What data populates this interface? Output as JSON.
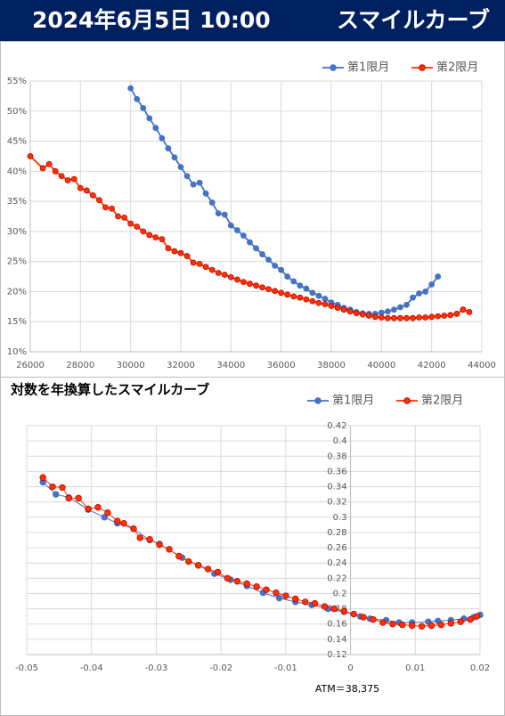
{
  "header": {
    "date": "2024年6月5日 10:00",
    "title": "スマイルカーブ"
  },
  "chart_data": [
    {
      "type": "line",
      "xlim": [
        26000,
        44000
      ],
      "xticks": [
        26000,
        28000,
        30000,
        32000,
        34000,
        36000,
        38000,
        40000,
        42000,
        44000
      ],
      "ylim": [
        10,
        55
      ],
      "yticks": [
        {
          "value": 10,
          "label": "10%"
        },
        {
          "value": 15,
          "label": "15%"
        },
        {
          "value": 20,
          "label": "20%"
        },
        {
          "value": 25,
          "label": "25%"
        },
        {
          "value": 30,
          "label": "30%"
        },
        {
          "value": 35,
          "label": "35%"
        },
        {
          "value": 40,
          "label": "40%"
        },
        {
          "value": 45,
          "label": "45%"
        },
        {
          "value": 50,
          "label": "50%"
        },
        {
          "value": 55,
          "label": "55%"
        }
      ],
      "grid": true,
      "legend": "top-right",
      "series": [
        {
          "name": "第1限月",
          "color": "#4472c4",
          "x": [
            30000,
            30250,
            30500,
            30750,
            31000,
            31250,
            31500,
            31750,
            32000,
            32250,
            32500,
            32750,
            33000,
            33250,
            33500,
            33750,
            34000,
            34250,
            34500,
            34750,
            35000,
            35250,
            35500,
            35750,
            36000,
            36250,
            36500,
            36750,
            37000,
            37250,
            37500,
            37750,
            38000,
            38250,
            38500,
            38750,
            39000,
            39250,
            39500,
            39750,
            40000,
            40250,
            40500,
            40750,
            41000,
            41250,
            41500,
            41750,
            42000,
            42250
          ],
          "values": [
            53.8,
            52,
            50.5,
            48.8,
            47.2,
            45.5,
            43.8,
            42.3,
            40.7,
            39.2,
            37.8,
            38.1,
            36.3,
            34.8,
            33,
            32.8,
            31,
            30.2,
            29.3,
            28.2,
            27.2,
            26.2,
            25.3,
            24.3,
            23.6,
            22.5,
            21.7,
            21,
            20.5,
            19.8,
            19.3,
            18.8,
            18.2,
            17.8,
            17.3,
            17,
            16.6,
            16.4,
            16.3,
            16.3,
            16.5,
            16.7,
            17,
            17.4,
            17.8,
            19,
            19.7,
            20,
            21.2,
            22.5
          ]
        },
        {
          "name": "第2限月",
          "color": "#ff3300",
          "x": [
            26000,
            26500,
            26750,
            27000,
            27250,
            27500,
            27750,
            28000,
            28250,
            28500,
            28750,
            29000,
            29250,
            29500,
            29750,
            30000,
            30250,
            30500,
            30750,
            31000,
            31250,
            31500,
            31750,
            32000,
            32250,
            32500,
            32750,
            33000,
            33250,
            33500,
            33750,
            34000,
            34250,
            34500,
            34750,
            35000,
            35250,
            35500,
            35750,
            36000,
            36250,
            36500,
            36750,
            37000,
            37250,
            37500,
            37750,
            38000,
            38250,
            38500,
            38750,
            39000,
            39250,
            39500,
            39750,
            40000,
            40250,
            40500,
            40750,
            41000,
            41250,
            41500,
            41750,
            42000,
            42250,
            42500,
            42750,
            43000,
            43250,
            43500
          ],
          "values": [
            42.5,
            40.5,
            41.2,
            40,
            39.2,
            38.5,
            38.7,
            37.2,
            36.8,
            36,
            35.2,
            34,
            33.8,
            32.5,
            32.3,
            31.3,
            30.8,
            30,
            29.4,
            29,
            28.7,
            27.2,
            26.7,
            26.4,
            25.9,
            24.8,
            24.6,
            24.1,
            23.6,
            23.1,
            22.8,
            22.4,
            22,
            21.6,
            21.3,
            21,
            20.7,
            20.4,
            20.1,
            19.8,
            19.5,
            19.2,
            19,
            18.7,
            18.4,
            18.1,
            17.9,
            17.6,
            17.3,
            17,
            16.7,
            16.4,
            16.2,
            16,
            15.8,
            15.7,
            15.6,
            15.6,
            15.6,
            15.6,
            15.6,
            15.7,
            15.7,
            15.8,
            15.9,
            16,
            16.1,
            16.3,
            17,
            16.6
          ]
        }
      ]
    },
    {
      "type": "line",
      "title": "対数を年換算したスマイルカーブ",
      "annotation": "ATM＝38,375",
      "xlim": [
        -0.05,
        0.02
      ],
      "xticks": [
        -0.05,
        -0.04,
        -0.03,
        -0.02,
        -0.01,
        0,
        0.01,
        0.02
      ],
      "ylim": [
        0.12,
        0.42
      ],
      "yticks": [
        0.12,
        0.14,
        0.16,
        0.18,
        0.2,
        0.22,
        0.24,
        0.26,
        0.28,
        0.3,
        0.32,
        0.34,
        0.36,
        0.38,
        0.4,
        0.42
      ],
      "grid": true,
      "legend": "top-right",
      "series": [
        {
          "name": "第1限月",
          "color": "#4472c4",
          "x": [
            -0.0475,
            -0.0455,
            -0.0435,
            -0.0405,
            -0.038,
            -0.036,
            -0.0335,
            -0.031,
            -0.0295,
            -0.026,
            -0.0235,
            -0.021,
            -0.0185,
            -0.016,
            -0.0135,
            -0.011,
            -0.0085,
            -0.006,
            -0.0035,
            -0.001,
            0.0015,
            0.003,
            0.0055,
            0.0075,
            0.0095,
            0.012,
            0.0135,
            0.0155,
            0.0175,
            0.019,
            0.02
          ],
          "values": [
            0.346,
            0.33,
            0.326,
            0.31,
            0.3,
            0.292,
            0.285,
            0.27,
            0.265,
            0.247,
            0.237,
            0.226,
            0.218,
            0.21,
            0.201,
            0.194,
            0.189,
            0.185,
            0.18,
            0.176,
            0.17,
            0.167,
            0.165,
            0.162,
            0.162,
            0.163,
            0.164,
            0.165,
            0.167,
            0.169,
            0.172
          ]
        },
        {
          "name": "第2限月",
          "color": "#ff3300",
          "x": [
            -0.0475,
            -0.046,
            -0.0445,
            -0.0435,
            -0.042,
            -0.0405,
            -0.039,
            -0.0375,
            -0.036,
            -0.035,
            -0.0335,
            -0.0325,
            -0.031,
            -0.0295,
            -0.028,
            -0.0265,
            -0.025,
            -0.0235,
            -0.022,
            -0.0205,
            -0.019,
            -0.0175,
            -0.016,
            -0.0145,
            -0.013,
            -0.0115,
            -0.01,
            -0.0085,
            -0.007,
            -0.0055,
            -0.004,
            -0.0025,
            -0.001,
            0.0005,
            0.002,
            0.0035,
            0.005,
            0.0065,
            0.008,
            0.0095,
            0.011,
            0.0125,
            0.014,
            0.0155,
            0.017,
            0.0185,
            0.0195
          ],
          "values": [
            0.352,
            0.34,
            0.339,
            0.325,
            0.325,
            0.311,
            0.313,
            0.306,
            0.295,
            0.292,
            0.285,
            0.273,
            0.271,
            0.264,
            0.258,
            0.249,
            0.242,
            0.237,
            0.232,
            0.228,
            0.22,
            0.216,
            0.213,
            0.209,
            0.205,
            0.201,
            0.197,
            0.193,
            0.189,
            0.187,
            0.183,
            0.18,
            0.177,
            0.173,
            0.169,
            0.166,
            0.162,
            0.16,
            0.159,
            0.158,
            0.157,
            0.158,
            0.159,
            0.161,
            0.163,
            0.166,
            0.17
          ]
        }
      ]
    }
  ]
}
